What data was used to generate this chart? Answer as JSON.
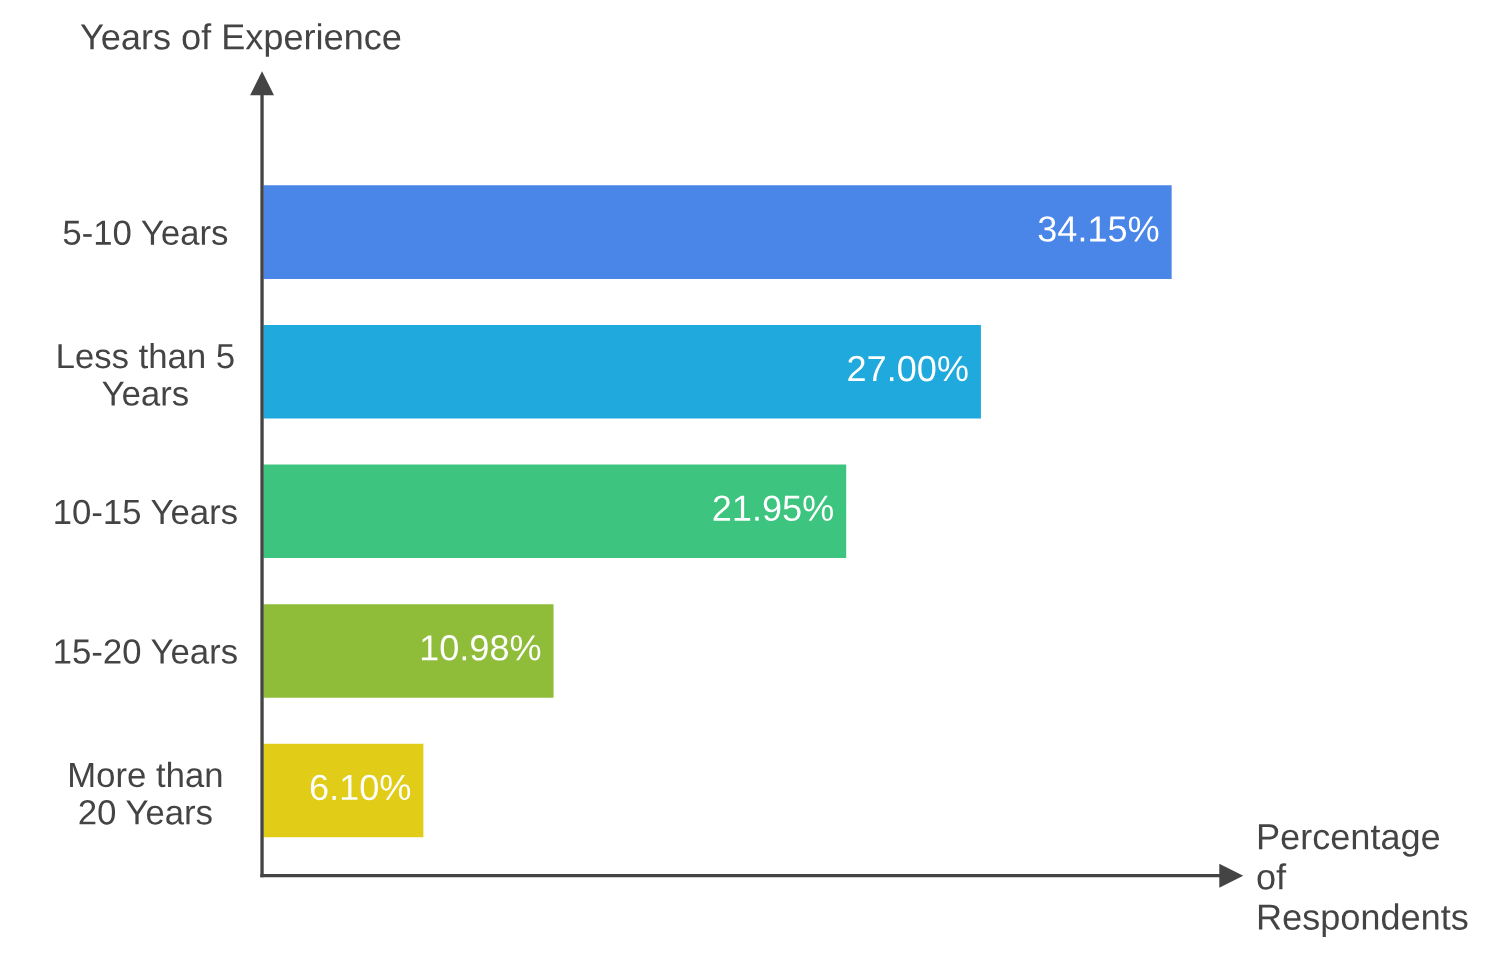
{
  "chart_data": {
    "type": "bar",
    "orientation": "horizontal",
    "ylabel": "Years of Experience",
    "xlabel": "Percentage\nof\nRespondents",
    "categories": [
      "5-10 Years",
      "Less than 5\nYears",
      "10-15 Years",
      "15-20 Years",
      "More than\n20 Years"
    ],
    "values": [
      34.15,
      27.0,
      21.95,
      10.98,
      6.1
    ],
    "value_labels": [
      "34.15%",
      "27.00%",
      "21.95%",
      "10.98%",
      "6.10%"
    ],
    "colors": [
      "#4a86e8",
      "#1fa9dc",
      "#3dc57f",
      "#8fbd3a",
      "#e1cc18"
    ],
    "xlim": [
      0,
      36.3
    ],
    "tick_labels": "y",
    "grid": false,
    "legend": false
  }
}
